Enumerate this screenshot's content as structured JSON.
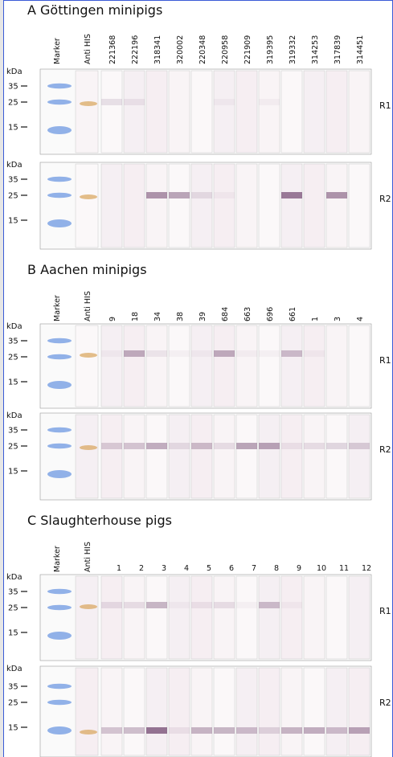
{
  "panels": [
    {
      "title": "A Göttingen minipigs",
      "lanes": [
        "Marker",
        "Anti HIS",
        "221368",
        "222196",
        "318341",
        "320002",
        "220348",
        "220958",
        "221909",
        "319395",
        "319332",
        "314253",
        "317839",
        "314451"
      ],
      "blots": [
        {
          "unit": "kDa",
          "ticks": [
            "35",
            "25",
            "15"
          ],
          "label": "R1"
        },
        {
          "unit": "kDa",
          "ticks": [
            "35",
            "25",
            "15"
          ],
          "label": "R2"
        }
      ]
    },
    {
      "title": "B Aachen minipigs",
      "lanes": [
        "Marker",
        "Anti HIS",
        "9",
        "18",
        "34",
        "38",
        "39",
        "684",
        "663",
        "696",
        "661",
        "1",
        "3",
        "4"
      ],
      "blots": [
        {
          "unit": "kDa",
          "ticks": [
            "35",
            "25",
            "15"
          ],
          "label": "R1"
        },
        {
          "unit": "kDa",
          "ticks": [
            "35",
            "25",
            "15"
          ],
          "label": "R2"
        }
      ]
    },
    {
      "title": "C Slaughterhouse pigs",
      "lanes": [
        "Marker",
        "Anti HIS",
        "1",
        "2",
        "3",
        "4",
        "5",
        "6",
        "7",
        "8",
        "9",
        "10",
        "11",
        "12"
      ],
      "blots": [
        {
          "unit": "kDa",
          "ticks": [
            "35",
            "25",
            "15"
          ],
          "label": "R1"
        },
        {
          "unit": "kDa",
          "ticks": [
            "35",
            "25",
            "15"
          ],
          "label": "R2"
        }
      ]
    }
  ]
}
